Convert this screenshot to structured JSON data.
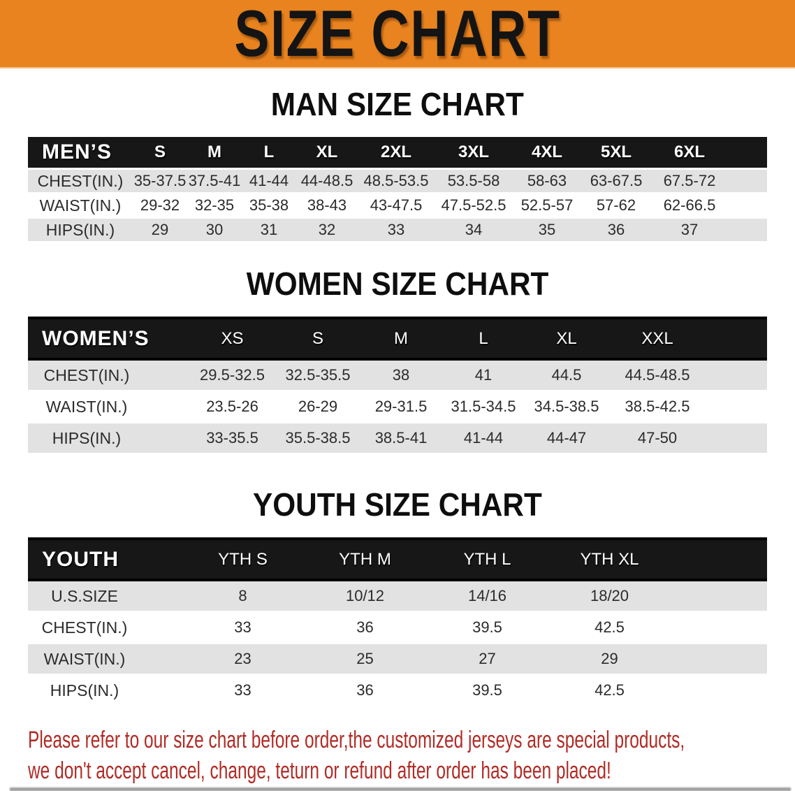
{
  "banner": {
    "title": "SIZE CHART"
  },
  "headings": {
    "man": "MAN SIZE CHART",
    "women": "WOMEN SIZE CHART",
    "youth": "YOUTH SIZE CHART"
  },
  "men_table": {
    "label": "MEN’S",
    "columns": [
      "S",
      "M",
      "L",
      "XL",
      "2XL",
      "3XL",
      "4XL",
      "5XL",
      "6XL"
    ],
    "rows": [
      {
        "label": "CHEST(IN.)",
        "values": [
          "35-37.5",
          "37.5-41",
          "41-44",
          "44-48.5",
          "48.5-53.5",
          "53.5-58",
          "58-63",
          "63-67.5",
          "67.5-72"
        ]
      },
      {
        "label": "WAIST(IN.)",
        "values": [
          "29-32",
          "32-35",
          "35-38",
          "38-43",
          "43-47.5",
          "47.5-52.5",
          "52.5-57",
          "57-62",
          "62-66.5"
        ]
      },
      {
        "label": "HIPS(IN.)",
        "values": [
          "29",
          "30",
          "31",
          "32",
          "33",
          "34",
          "35",
          "36",
          "37"
        ]
      }
    ]
  },
  "women_table": {
    "label": "WOMEN’S",
    "columns": [
      "XS",
      "S",
      "M",
      "L",
      "XL",
      "XXL"
    ],
    "rows": [
      {
        "label": "CHEST(IN.)",
        "values": [
          "29.5-32.5",
          "32.5-35.5",
          "38",
          "41",
          "44.5",
          "44.5-48.5"
        ]
      },
      {
        "label": "WAIST(IN.)",
        "values": [
          "23.5-26",
          "26-29",
          "29-31.5",
          "31.5-34.5",
          "34.5-38.5",
          "38.5-42.5"
        ]
      },
      {
        "label": "HIPS(IN.)",
        "values": [
          "33-35.5",
          "35.5-38.5",
          "38.5-41",
          "41-44",
          "44-47",
          "47-50"
        ]
      }
    ]
  },
  "youth_table": {
    "label": "YOUTH",
    "columns": [
      "YTH S",
      "YTH M",
      "YTH L",
      "YTH XL"
    ],
    "rows": [
      {
        "label": "U.S.SIZE",
        "values": [
          "8",
          "10/12",
          "14/16",
          "18/20"
        ]
      },
      {
        "label": "CHEST(IN.)",
        "values": [
          "33",
          "36",
          "39.5",
          "42.5"
        ]
      },
      {
        "label": "WAIST(IN.)",
        "values": [
          "23",
          "25",
          "27",
          "29"
        ]
      },
      {
        "label": "HIPS(IN.)",
        "values": [
          "33",
          "36",
          "39.5",
          "42.5"
        ]
      }
    ]
  },
  "disclaimer": {
    "line1": "Please refer to our size chart before order,the customized jerseys are special products,",
    "line2": "we don't accept cancel, change, teturn or refund after order has been placed!"
  },
  "colors": {
    "banner_orange": "#E8831F",
    "header_black": "#171717",
    "stripe_gray": "#E2E2E2",
    "disclaimer_red": "#B12B25"
  }
}
